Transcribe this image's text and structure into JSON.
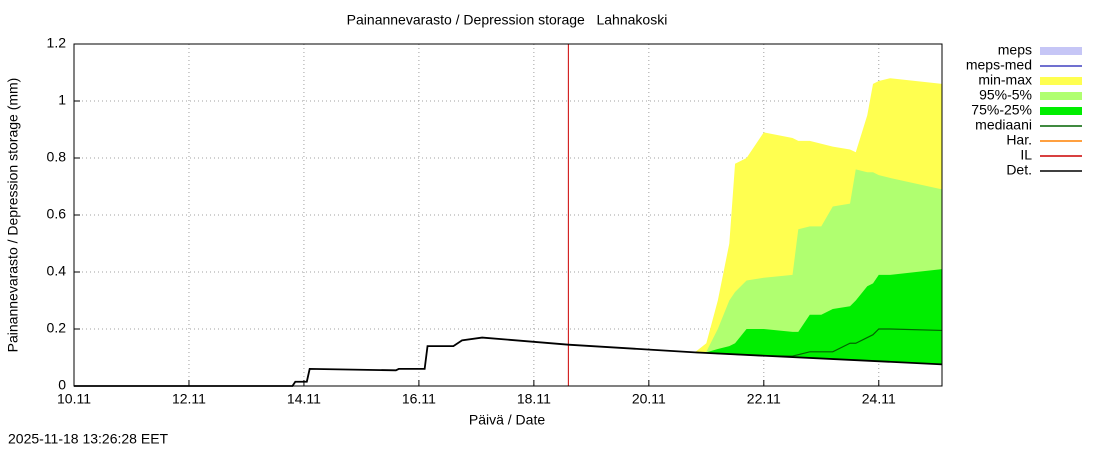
{
  "chart_data": {
    "type": "line",
    "title": "Painannevarasto / Depression storage   Lahnakoski",
    "x_label": "Päivä / Date",
    "y_label": "Painannevarasto / Depression storage (mm)",
    "timestamp": "2025-11-18 13:26:28 EET",
    "xlim": [
      10,
      25.1
    ],
    "ylim": [
      0,
      1.2
    ],
    "xticks": [
      {
        "value": 10,
        "label": "10.11"
      },
      {
        "value": 12,
        "label": "12.11"
      },
      {
        "value": 14,
        "label": "14.11"
      },
      {
        "value": 16,
        "label": "16.11"
      },
      {
        "value": 18,
        "label": "18.11"
      },
      {
        "value": 20,
        "label": "20.11"
      },
      {
        "value": 22,
        "label": "22.11"
      },
      {
        "value": 24,
        "label": "24.11"
      }
    ],
    "yticks": [
      0,
      0.2,
      0.4,
      0.6,
      0.8,
      1,
      1.2
    ],
    "grid": true,
    "legend": "right",
    "series": [
      {
        "name": "meps",
        "color": "#c6c6f6",
        "style": "band"
      },
      {
        "name": "meps-med",
        "color": "#4040c0",
        "style": "line"
      },
      {
        "name": "min-max",
        "color": "#ffff50",
        "style": "band",
        "x": [
          20.8,
          21.0,
          21.2,
          21.4,
          21.5,
          21.7,
          22.0,
          22.5,
          22.6,
          22.8,
          23.0,
          23.2,
          23.5,
          23.6,
          23.8,
          23.9,
          24.0,
          24.2,
          25.1
        ],
        "lower": [
          0.118,
          0.116,
          0.114,
          0.112,
          0.111,
          0.109,
          0.106,
          0.101,
          0.1,
          0.098,
          0.096,
          0.094,
          0.091,
          0.09,
          0.088,
          0.087,
          0.086,
          0.084,
          0.076
        ],
        "upper": [
          0.118,
          0.15,
          0.3,
          0.5,
          0.78,
          0.8,
          0.89,
          0.87,
          0.86,
          0.86,
          0.85,
          0.84,
          0.83,
          0.82,
          0.95,
          1.06,
          1.07,
          1.08,
          1.06
        ]
      },
      {
        "name": "95%-5%",
        "color": "#b0ff70",
        "style": "band",
        "x": [
          20.8,
          21.0,
          21.2,
          21.4,
          21.5,
          21.7,
          22.0,
          22.5,
          22.6,
          22.8,
          23.0,
          23.2,
          23.5,
          23.6,
          23.8,
          23.9,
          24.0,
          24.2,
          25.1
        ],
        "lower": [
          0.118,
          0.116,
          0.114,
          0.112,
          0.111,
          0.109,
          0.106,
          0.101,
          0.1,
          0.098,
          0.096,
          0.094,
          0.091,
          0.09,
          0.088,
          0.087,
          0.086,
          0.084,
          0.076
        ],
        "upper": [
          0.118,
          0.12,
          0.2,
          0.3,
          0.33,
          0.37,
          0.38,
          0.39,
          0.55,
          0.56,
          0.56,
          0.63,
          0.64,
          0.76,
          0.75,
          0.75,
          0.74,
          0.73,
          0.69
        ]
      },
      {
        "name": "75%-25%",
        "color": "#00ee00",
        "style": "band",
        "x": [
          20.8,
          21.0,
          21.2,
          21.4,
          21.5,
          21.7,
          22.0,
          22.5,
          22.6,
          22.8,
          23.0,
          23.2,
          23.5,
          23.6,
          23.8,
          23.9,
          24.0,
          24.2,
          25.1
        ],
        "lower": [
          0.118,
          0.116,
          0.114,
          0.112,
          0.111,
          0.109,
          0.106,
          0.101,
          0.1,
          0.098,
          0.096,
          0.094,
          0.091,
          0.09,
          0.088,
          0.087,
          0.086,
          0.084,
          0.076
        ],
        "upper": [
          0.118,
          0.118,
          0.13,
          0.14,
          0.15,
          0.2,
          0.2,
          0.19,
          0.19,
          0.25,
          0.25,
          0.27,
          0.28,
          0.3,
          0.35,
          0.36,
          0.39,
          0.39,
          0.41
        ]
      },
      {
        "name": "mediaani",
        "color": "#006400",
        "style": "line",
        "x": [
          20.8,
          21.0,
          21.2,
          21.4,
          21.5,
          21.7,
          22.0,
          22.5,
          22.6,
          22.8,
          23.0,
          23.2,
          23.5,
          23.6,
          23.8,
          23.9,
          24.0,
          24.2,
          25.1
        ],
        "values": [
          0.118,
          0.116,
          0.114,
          0.112,
          0.111,
          0.109,
          0.106,
          0.105,
          0.11,
          0.12,
          0.12,
          0.12,
          0.15,
          0.15,
          0.17,
          0.18,
          0.2,
          0.2,
          0.195
        ]
      },
      {
        "name": "Har.",
        "color": "#ff8000",
        "style": "line"
      },
      {
        "name": "IL",
        "color": "#cc0000",
        "style": "vline",
        "at": 18.6
      },
      {
        "name": "Det.",
        "color": "#000000",
        "style": "line",
        "x": [
          10,
          13.8,
          13.85,
          14.05,
          14.1,
          15.6,
          15.65,
          16.1,
          16.15,
          16.6,
          16.75,
          17.1,
          18.6,
          20.8,
          25.1
        ],
        "values": [
          0,
          0,
          0.015,
          0.015,
          0.06,
          0.055,
          0.06,
          0.06,
          0.14,
          0.14,
          0.16,
          0.17,
          0.145,
          0.118,
          0.076
        ]
      }
    ]
  }
}
